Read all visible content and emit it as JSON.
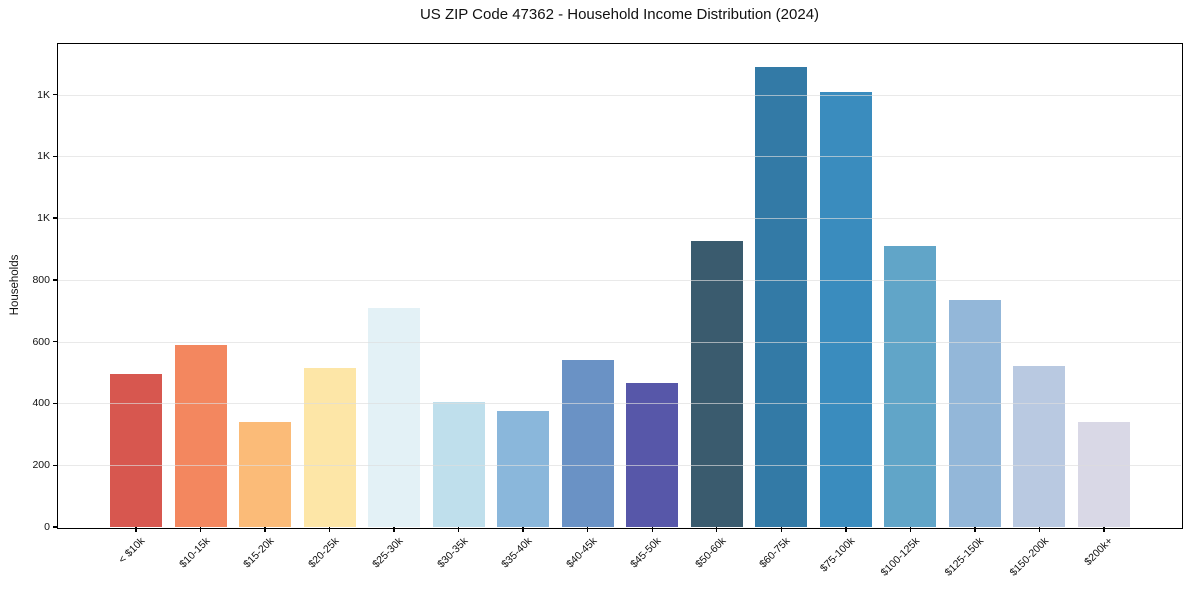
{
  "chart_data": {
    "type": "bar",
    "title": "US ZIP Code 47362 - Household Income Distribution (2024)",
    "xlabel": "",
    "ylabel": "Households",
    "categories": [
      "< $10k",
      "$10-15k",
      "$15-20k",
      "$20-25k",
      "$25-30k",
      "$30-35k",
      "$35-40k",
      "$40-45k",
      "$45-50k",
      "$50-60k",
      "$60-75k",
      "$75-100k",
      "$100-125k",
      "$125-150k",
      "$150-200k",
      "$200k+"
    ],
    "values": [
      495,
      590,
      340,
      515,
      710,
      405,
      375,
      540,
      465,
      925,
      1490,
      1410,
      910,
      735,
      520,
      340
    ],
    "bar_colors": [
      "#d7574f",
      "#f3875f",
      "#fbbb78",
      "#fde6a7",
      "#e3f1f6",
      "#bfdfec",
      "#8ab7db",
      "#6a92c5",
      "#5757a9",
      "#3a5b6e",
      "#337aa6",
      "#3a8cbe",
      "#61a5c8",
      "#93b7d9",
      "#b9c9e1",
      "#d9d8e6"
    ],
    "y_ticks": {
      "values": [
        0,
        200,
        400,
        600,
        800,
        1000,
        1200,
        1400
      ],
      "labels": [
        "0",
        "200",
        "400",
        "600",
        "800",
        "1K",
        "1K",
        "1K"
      ]
    },
    "ylim": [
      0,
      1564
    ],
    "grid": "horizontal",
    "legend_position": "none",
    "axis_color": "#000000",
    "gridline_color": "#dddddd",
    "background_color": "#ffffff"
  }
}
